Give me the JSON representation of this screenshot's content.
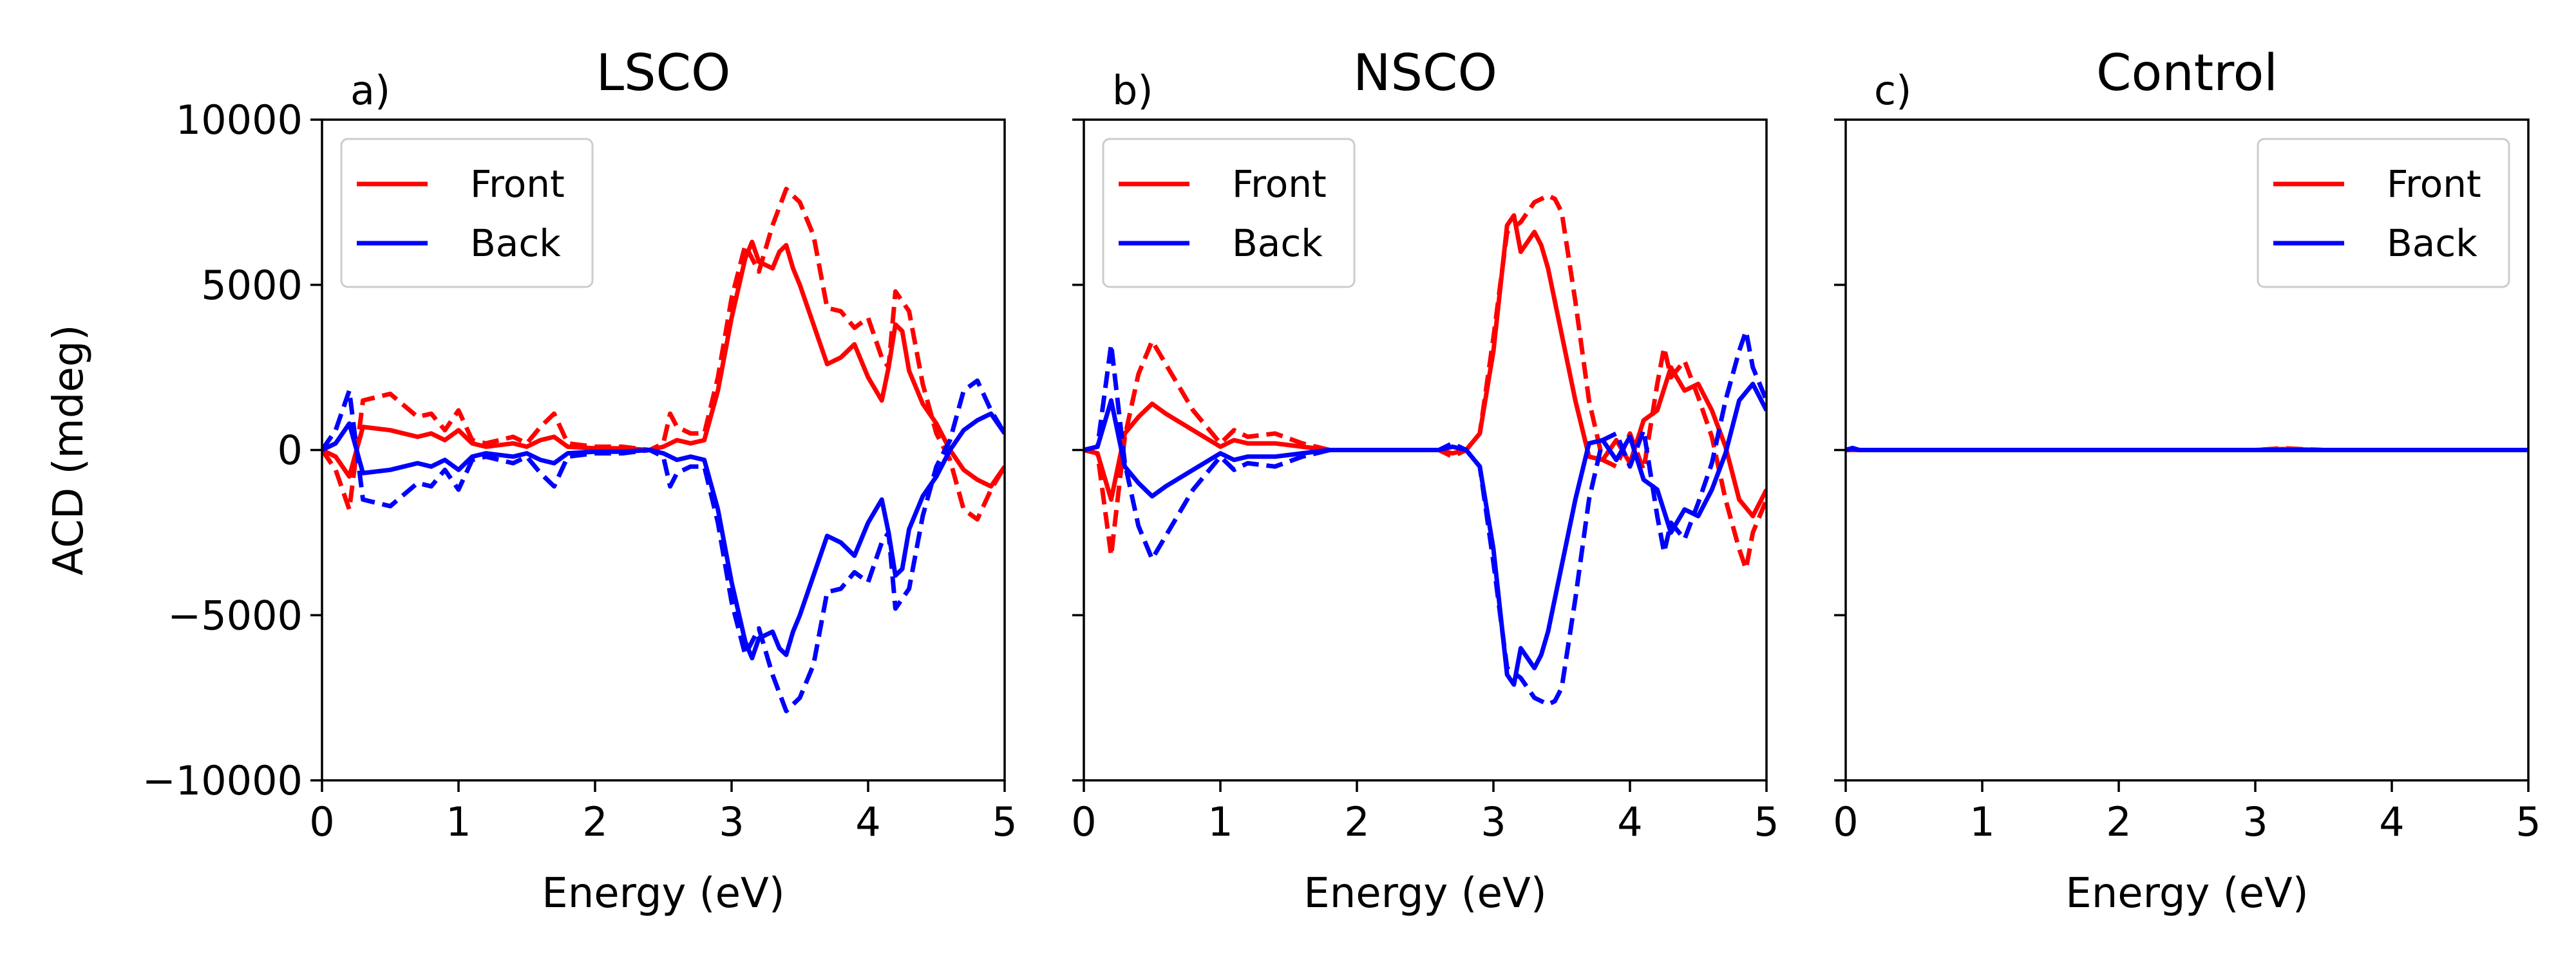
{
  "chart_data": [
    {
      "type": "line",
      "panel_label": "a)",
      "title": "LSCO",
      "xlabel": "Energy (eV)",
      "ylabel": "ACD (mdeg)",
      "xlim": [
        0,
        5
      ],
      "ylim": [
        -10000,
        10000
      ],
      "xticks": [
        0,
        1,
        2,
        3,
        4,
        5
      ],
      "yticks": [
        -10000,
        -5000,
        0,
        5000,
        10000
      ],
      "ytick_labels": [
        "−10000",
        "−5000",
        "0",
        "5000",
        "10000"
      ],
      "show_yticklabels": true,
      "grid": false,
      "legend_position": "upper-left",
      "legend": [
        {
          "label": "Front",
          "color": "#ff0000"
        },
        {
          "label": "Back",
          "color": "#0000ff"
        }
      ],
      "series": [
        {
          "legend": "Front",
          "color": "#ff0000",
          "style": "solid",
          "x": [
            0,
            0.1,
            0.2,
            0.3,
            0.5,
            0.7,
            0.8,
            0.9,
            1.0,
            1.1,
            1.2,
            1.4,
            1.5,
            1.6,
            1.7,
            1.8,
            2.0,
            2.2,
            2.4,
            2.5,
            2.6,
            2.7,
            2.8,
            2.9,
            3.0,
            3.1,
            3.15,
            3.2,
            3.3,
            3.35,
            3.4,
            3.45,
            3.5,
            3.6,
            3.7,
            3.8,
            3.9,
            4.0,
            4.1,
            4.15,
            4.2,
            4.25,
            4.3,
            4.4,
            4.5,
            4.6,
            4.7,
            4.8,
            4.9,
            5.0
          ],
          "y": [
            0,
            -200,
            -800,
            700,
            600,
            400,
            500,
            300,
            600,
            200,
            100,
            200,
            100,
            300,
            400,
            100,
            50,
            50,
            0,
            100,
            300,
            200,
            300,
            1800,
            4000,
            5800,
            6300,
            5700,
            5500,
            6000,
            6200,
            5500,
            5000,
            3800,
            2600,
            2800,
            3200,
            2200,
            1500,
            2500,
            3800,
            3600,
            2400,
            1400,
            800,
            0,
            -600,
            -900,
            -1100,
            -500
          ]
        },
        {
          "legend": "Front",
          "color": "#ff0000",
          "style": "dashed",
          "x": [
            0,
            0.1,
            0.2,
            0.3,
            0.5,
            0.7,
            0.8,
            0.9,
            1.0,
            1.1,
            1.2,
            1.4,
            1.5,
            1.6,
            1.7,
            1.8,
            2.0,
            2.2,
            2.4,
            2.5,
            2.55,
            2.6,
            2.7,
            2.8,
            2.9,
            3.0,
            3.1,
            3.2,
            3.3,
            3.4,
            3.45,
            3.5,
            3.6,
            3.7,
            3.8,
            3.9,
            4.0,
            4.1,
            4.15,
            4.2,
            4.3,
            4.4,
            4.5,
            4.6,
            4.7,
            4.8,
            4.9,
            5.0
          ],
          "y": [
            0,
            -600,
            -1800,
            1500,
            1700,
            1000,
            1100,
            600,
            1200,
            300,
            200,
            400,
            200,
            700,
            1100,
            200,
            100,
            100,
            0,
            200,
            1100,
            700,
            500,
            500,
            2200,
            4600,
            6200,
            5400,
            6800,
            7900,
            7700,
            7500,
            6500,
            4300,
            4200,
            3700,
            4000,
            2800,
            2500,
            4800,
            4200,
            2000,
            500,
            -300,
            -1800,
            -2100,
            -1200,
            -500
          ]
        },
        {
          "legend": "Back",
          "color": "#0000ff",
          "style": "solid",
          "x": [
            0,
            0.1,
            0.2,
            0.3,
            0.5,
            0.7,
            0.8,
            0.9,
            1.0,
            1.1,
            1.2,
            1.4,
            1.5,
            1.6,
            1.7,
            1.8,
            2.0,
            2.2,
            2.4,
            2.5,
            2.6,
            2.7,
            2.8,
            2.9,
            3.0,
            3.1,
            3.15,
            3.2,
            3.3,
            3.35,
            3.4,
            3.45,
            3.5,
            3.6,
            3.7,
            3.8,
            3.9,
            4.0,
            4.1,
            4.15,
            4.2,
            4.25,
            4.3,
            4.4,
            4.5,
            4.6,
            4.7,
            4.8,
            4.9,
            5.0
          ],
          "y": [
            0,
            200,
            800,
            -700,
            -600,
            -400,
            -500,
            -300,
            -600,
            -200,
            -100,
            -200,
            -100,
            -300,
            -400,
            -100,
            -50,
            -50,
            0,
            -100,
            -300,
            -200,
            -300,
            -1800,
            -4000,
            -5800,
            -6300,
            -5700,
            -5500,
            -6000,
            -6200,
            -5500,
            -5000,
            -3800,
            -2600,
            -2800,
            -3200,
            -2200,
            -1500,
            -2500,
            -3800,
            -3600,
            -2400,
            -1400,
            -800,
            0,
            600,
            900,
            1100,
            500
          ]
        },
        {
          "legend": "Back",
          "color": "#0000ff",
          "style": "dashed",
          "x": [
            0,
            0.1,
            0.2,
            0.3,
            0.5,
            0.7,
            0.8,
            0.9,
            1.0,
            1.1,
            1.2,
            1.4,
            1.5,
            1.6,
            1.7,
            1.8,
            2.0,
            2.2,
            2.4,
            2.5,
            2.55,
            2.6,
            2.7,
            2.8,
            2.9,
            3.0,
            3.1,
            3.2,
            3.3,
            3.4,
            3.45,
            3.5,
            3.6,
            3.7,
            3.8,
            3.9,
            4.0,
            4.1,
            4.15,
            4.2,
            4.3,
            4.4,
            4.5,
            4.6,
            4.7,
            4.8,
            4.9,
            5.0
          ],
          "y": [
            0,
            600,
            1800,
            -1500,
            -1700,
            -1000,
            -1100,
            -600,
            -1200,
            -300,
            -200,
            -400,
            -200,
            -700,
            -1100,
            -200,
            -100,
            -100,
            0,
            -200,
            -1100,
            -700,
            -500,
            -500,
            -2200,
            -4600,
            -6200,
            -5400,
            -6800,
            -7900,
            -7700,
            -7500,
            -6500,
            -4300,
            -4200,
            -3700,
            -4000,
            -2800,
            -2500,
            -4800,
            -4200,
            -2000,
            -500,
            300,
            1800,
            2100,
            1200,
            500
          ]
        }
      ]
    },
    {
      "type": "line",
      "panel_label": "b)",
      "title": "NSCO",
      "xlabel": "Energy (eV)",
      "ylabel": "",
      "xlim": [
        0,
        5
      ],
      "ylim": [
        -10000,
        10000
      ],
      "xticks": [
        0,
        1,
        2,
        3,
        4,
        5
      ],
      "yticks": [
        -10000,
        -5000,
        0,
        5000,
        10000
      ],
      "ytick_labels": [
        "−10000",
        "−5000",
        "0",
        "5000",
        "10000"
      ],
      "show_yticklabels": false,
      "grid": false,
      "legend_position": "upper-left",
      "legend": [
        {
          "label": "Front",
          "color": "#ff0000"
        },
        {
          "label": "Back",
          "color": "#0000ff"
        }
      ],
      "series": [
        {
          "legend": "Front",
          "color": "#ff0000",
          "style": "solid",
          "x": [
            0,
            0.1,
            0.2,
            0.3,
            0.4,
            0.5,
            0.6,
            0.8,
            1.0,
            1.1,
            1.2,
            1.4,
            1.6,
            1.8,
            2.0,
            2.2,
            2.4,
            2.6,
            2.7,
            2.8,
            2.9,
            3.0,
            3.1,
            3.15,
            3.2,
            3.3,
            3.35,
            3.4,
            3.5,
            3.6,
            3.7,
            3.8,
            3.9,
            4.0,
            4.1,
            4.2,
            4.3,
            4.4,
            4.5,
            4.6,
            4.7,
            4.8,
            4.9,
            5.0
          ],
          "y": [
            0,
            -100,
            -1500,
            500,
            1000,
            1400,
            1100,
            600,
            100,
            300,
            200,
            200,
            100,
            0,
            0,
            0,
            0,
            0,
            -100,
            0,
            500,
            3000,
            6800,
            7100,
            6000,
            6600,
            6200,
            5500,
            3500,
            1500,
            -200,
            -300,
            300,
            -400,
            900,
            1200,
            2500,
            1800,
            2000,
            1200,
            100,
            -1500,
            -2000,
            -1200
          ]
        },
        {
          "legend": "Front",
          "color": "#ff0000",
          "style": "dashed",
          "x": [
            0,
            0.1,
            0.2,
            0.3,
            0.4,
            0.5,
            0.6,
            0.8,
            1.0,
            1.1,
            1.2,
            1.4,
            1.6,
            1.8,
            2.0,
            2.2,
            2.4,
            2.6,
            2.7,
            2.8,
            2.9,
            3.0,
            3.1,
            3.2,
            3.3,
            3.4,
            3.45,
            3.5,
            3.6,
            3.7,
            3.8,
            3.9,
            4.0,
            4.1,
            4.2,
            4.25,
            4.3,
            4.4,
            4.5,
            4.6,
            4.7,
            4.8,
            4.85,
            4.9,
            5.0
          ],
          "y": [
            0,
            -100,
            -3200,
            400,
            2300,
            3300,
            2600,
            1200,
            200,
            600,
            400,
            500,
            200,
            0,
            0,
            0,
            0,
            0,
            -200,
            0,
            500,
            3400,
            6600,
            6900,
            7500,
            7700,
            7600,
            7200,
            4500,
            1500,
            -300,
            -500,
            500,
            -600,
            2000,
            3100,
            2200,
            2700,
            1600,
            400,
            -1500,
            -3000,
            -3600,
            -2500,
            -1500
          ]
        },
        {
          "legend": "Back",
          "color": "#0000ff",
          "style": "solid",
          "x": [
            0,
            0.1,
            0.2,
            0.3,
            0.4,
            0.5,
            0.6,
            0.8,
            1.0,
            1.1,
            1.2,
            1.4,
            1.6,
            1.8,
            2.0,
            2.2,
            2.4,
            2.6,
            2.7,
            2.8,
            2.9,
            3.0,
            3.1,
            3.15,
            3.2,
            3.3,
            3.35,
            3.4,
            3.5,
            3.6,
            3.7,
            3.8,
            3.9,
            4.0,
            4.1,
            4.2,
            4.3,
            4.4,
            4.5,
            4.6,
            4.7,
            4.8,
            4.9,
            5.0
          ],
          "y": [
            0,
            100,
            1500,
            -500,
            -1000,
            -1400,
            -1100,
            -600,
            -100,
            -300,
            -200,
            -200,
            -100,
            0,
            0,
            0,
            0,
            0,
            100,
            0,
            -500,
            -3000,
            -6800,
            -7100,
            -6000,
            -6600,
            -6200,
            -5500,
            -3500,
            -1500,
            200,
            300,
            -300,
            400,
            -900,
            -1200,
            -2500,
            -1800,
            -2000,
            -1200,
            -100,
            1500,
            2000,
            1200
          ]
        },
        {
          "legend": "Back",
          "color": "#0000ff",
          "style": "dashed",
          "x": [
            0,
            0.1,
            0.2,
            0.3,
            0.4,
            0.5,
            0.6,
            0.8,
            1.0,
            1.1,
            1.2,
            1.4,
            1.6,
            1.8,
            2.0,
            2.2,
            2.4,
            2.6,
            2.7,
            2.8,
            2.9,
            3.0,
            3.1,
            3.2,
            3.3,
            3.4,
            3.45,
            3.5,
            3.6,
            3.7,
            3.8,
            3.9,
            4.0,
            4.1,
            4.2,
            4.25,
            4.3,
            4.4,
            4.5,
            4.6,
            4.7,
            4.8,
            4.85,
            4.9,
            5.0
          ],
          "y": [
            0,
            100,
            3200,
            -400,
            -2300,
            -3300,
            -2600,
            -1200,
            -200,
            -600,
            -400,
            -500,
            -200,
            0,
            0,
            0,
            0,
            0,
            200,
            0,
            -500,
            -3400,
            -6600,
            -6900,
            -7500,
            -7700,
            -7600,
            -7200,
            -4500,
            -1500,
            300,
            500,
            -500,
            600,
            -2000,
            -3100,
            -2200,
            -2700,
            -1600,
            -400,
            1500,
            3000,
            3600,
            2500,
            1500
          ]
        }
      ]
    },
    {
      "type": "line",
      "panel_label": "c)",
      "title": "Control",
      "xlabel": "Energy (eV)",
      "ylabel": "",
      "xlim": [
        0,
        5
      ],
      "ylim": [
        -10000,
        10000
      ],
      "xticks": [
        0,
        1,
        2,
        3,
        4,
        5
      ],
      "yticks": [
        -10000,
        -5000,
        0,
        5000,
        10000
      ],
      "ytick_labels": [
        "−10000",
        "−5000",
        "0",
        "5000",
        "10000"
      ],
      "show_yticklabels": false,
      "grid": false,
      "legend_position": "upper-right",
      "legend": [
        {
          "label": "Front",
          "color": "#ff0000"
        },
        {
          "label": "Back",
          "color": "#0000ff"
        }
      ],
      "series": [
        {
          "legend": "Front",
          "color": "#ff0000",
          "style": "solid",
          "x": [
            0,
            0.5,
            1,
            1.5,
            2,
            2.5,
            3,
            3.2,
            3.5,
            4,
            4.5,
            5
          ],
          "y": [
            0,
            0,
            0,
            0,
            0,
            0,
            0,
            30,
            0,
            0,
            0,
            0
          ]
        },
        {
          "legend": "Front",
          "color": "#ff0000",
          "style": "dashed",
          "x": [
            0,
            0.5,
            1,
            1.5,
            2,
            2.5,
            3,
            3.2,
            3.5,
            4,
            4.5,
            5
          ],
          "y": [
            0,
            0,
            0,
            0,
            0,
            0,
            0,
            50,
            0,
            0,
            0,
            0
          ]
        },
        {
          "legend": "Back",
          "color": "#0000ff",
          "style": "solid",
          "x": [
            0,
            0.05,
            0.1,
            0.5,
            1,
            1.5,
            2,
            2.5,
            3,
            3.5,
            4,
            4.5,
            5
          ],
          "y": [
            0,
            40,
            0,
            0,
            0,
            0,
            0,
            0,
            0,
            0,
            0,
            0,
            0
          ]
        },
        {
          "legend": "Back",
          "color": "#0000ff",
          "style": "dashed",
          "x": [
            0,
            0.05,
            0.1,
            0.5,
            1,
            1.5,
            2,
            2.5,
            3,
            3.5,
            4,
            4.5,
            5
          ],
          "y": [
            0,
            60,
            0,
            0,
            0,
            0,
            0,
            0,
            0,
            0,
            0,
            0,
            0
          ]
        }
      ]
    }
  ]
}
